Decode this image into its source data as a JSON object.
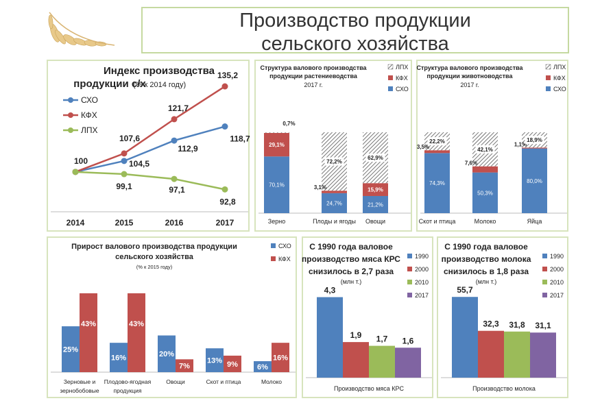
{
  "page_title": [
    "Производство продукции",
    "сельского хозяйства"
  ],
  "colors": {
    "sxo": "#4f81bd",
    "kfh": "#c0504d",
    "lph": "#9bbb59",
    "y1990": "#4f81bd",
    "y2000": "#c0504d",
    "y2010": "#9bbb59",
    "y2017": "#8064a2",
    "panel_border": "#d7e4bd"
  },
  "chart_data": [
    {
      "id": "index",
      "type": "line",
      "title": "Индекс производства",
      "title2": "продукции с/х",
      "subtitle": "(% к 2014 году)",
      "x": [
        "2014",
        "2015",
        "2016",
        "2017"
      ],
      "ylim": [
        85,
        140
      ],
      "series": [
        {
          "name": "СХО",
          "color": "#4f81bd",
          "values": [
            100,
            104.5,
            112.9,
            118.7
          ],
          "labels": [
            "",
            "104,5",
            "112,9",
            "118,7"
          ]
        },
        {
          "name": "КФХ",
          "color": "#c0504d",
          "values": [
            100,
            107.6,
            121.7,
            135.2
          ],
          "labels": [
            "100",
            "107,6",
            "121,7",
            "135,2"
          ]
        },
        {
          "name": "ЛПХ",
          "color": "#9bbb59",
          "values": [
            100,
            99.1,
            97.1,
            92.8
          ],
          "labels": [
            "",
            "99,1",
            "97,1",
            "92,8"
          ]
        }
      ]
    },
    {
      "id": "crops",
      "type": "bar",
      "title": "Структура валового производства",
      "title2": "продукции растениеводства",
      "year": "2017 г.",
      "legend": [
        "ЛПХ",
        "КФХ",
        "СХО"
      ],
      "categories": [
        "Зерно",
        "Плоды и ягоды",
        "Овощи"
      ],
      "sxo": [
        70.1,
        24.7,
        21.2
      ],
      "kfh": [
        29.1,
        3.1,
        15.9
      ],
      "lph": [
        0.7,
        72.2,
        62.9
      ],
      "sxo_labels": [
        "70,1%",
        "24,7%",
        "21,2%"
      ],
      "kfh_labels": [
        "29,1%",
        "3,1%",
        "15,9%"
      ],
      "lph_labels": [
        "0,7%",
        "72,2%",
        "62,9%"
      ]
    },
    {
      "id": "livestock",
      "type": "bar",
      "title": "Структура валового производства",
      "title2": "продукции животноводства",
      "year": "2017 г.",
      "legend": [
        "ЛПХ",
        "КФХ",
        "СХО"
      ],
      "categories": [
        "Скот и птица",
        "Молоко",
        "Яйца"
      ],
      "sxo": [
        74.3,
        50.3,
        80.0
      ],
      "kfh": [
        3.5,
        7.6,
        1.1
      ],
      "lph": [
        22.2,
        42.1,
        18.9
      ],
      "sxo_labels": [
        "74,3%",
        "50,3%",
        "80,0%"
      ],
      "kfh_labels": [
        "3,5%",
        "7,6%",
        "1,1%"
      ],
      "lph_labels": [
        "22,2%",
        "42,1%",
        "18,9%"
      ]
    },
    {
      "id": "growth",
      "type": "bar",
      "title": "Прирост валового производства продукции",
      "title2": "сельского хозяйства",
      "subtitle": "(% к 2015 году)",
      "legend": [
        "СХО",
        "КФХ"
      ],
      "categories": [
        [
          "Зерновые и",
          "зернобобовые"
        ],
        [
          "Плодово-ягодная",
          "продукция"
        ],
        [
          "Овощи"
        ],
        [
          "Скот и птица"
        ],
        [
          "Молоко"
        ]
      ],
      "ylim": [
        0,
        50
      ],
      "series": [
        {
          "name": "СХО",
          "color": "#4f81bd",
          "values": [
            25,
            16,
            20,
            13,
            6
          ],
          "labels": [
            "25%",
            "16%",
            "20%",
            "13%",
            "6%"
          ]
        },
        {
          "name": "КФХ",
          "color": "#c0504d",
          "values": [
            43,
            43,
            7,
            9,
            16
          ],
          "labels": [
            "43%",
            "43%",
            "7%",
            "9%",
            "16%"
          ]
        }
      ]
    },
    {
      "id": "meat",
      "type": "bar",
      "title_lines": [
        "С 1990 года валовое",
        "производство мяса КРС",
        "снизилось в  2,7 раза"
      ],
      "unit": "(млн т.)",
      "legend": [
        "1990",
        "2000",
        "2010",
        "2017"
      ],
      "category": "Производство мяса КРС",
      "values": [
        4.3,
        1.9,
        1.7,
        1.6
      ],
      "labels": [
        "4,3",
        "1,9",
        "1,7",
        "1,6"
      ],
      "ylim": [
        0,
        4.8
      ]
    },
    {
      "id": "milk",
      "type": "bar",
      "title_lines": [
        "С 1990 года валовое",
        "производство молока",
        "снизилось в 1,8 раза"
      ],
      "unit": "(млн т.)",
      "legend": [
        "1990",
        "2000",
        "2010",
        "2017"
      ],
      "category": "Производство молока",
      "values": [
        55.7,
        32.3,
        31.8,
        31.1
      ],
      "labels": [
        "55,7",
        "32,3",
        "31,8",
        "31,1"
      ],
      "ylim": [
        0,
        62
      ]
    }
  ]
}
